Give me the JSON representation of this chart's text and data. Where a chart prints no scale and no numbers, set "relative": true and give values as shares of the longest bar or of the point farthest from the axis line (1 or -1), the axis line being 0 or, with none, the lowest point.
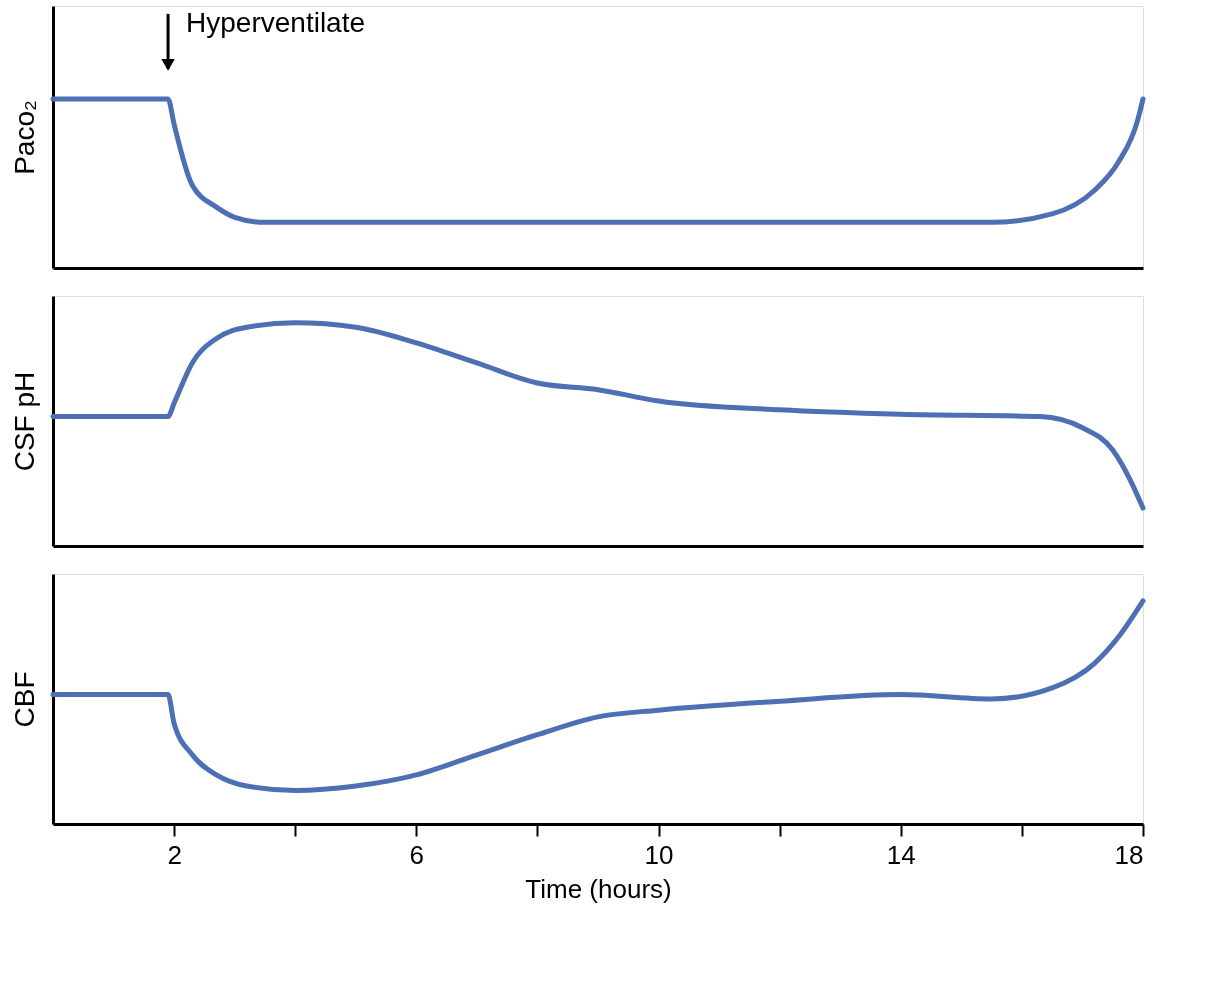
{
  "chart_data": [
    {
      "type": "line",
      "relative": true,
      "ylabel": "Paco₂",
      "xlim": [
        0,
        18
      ],
      "tick_labels": false,
      "grid": false,
      "legend": false,
      "annotations": [
        "Hyperventilate"
      ],
      "series": [
        {
          "color": "#4d6fb3",
          "x": [
            0,
            1.9,
            2.0,
            2.3,
            2.7,
            3.0,
            3.5,
            15.5,
            16.5,
            17.2,
            17.6,
            17.9,
            18
          ],
          "values": [
            1.0,
            1.0,
            0.85,
            0.49,
            0.36,
            0.3,
            0.27,
            0.27,
            0.32,
            0.46,
            0.63,
            0.86,
            1.0
          ]
        }
      ]
    },
    {
      "type": "line",
      "relative": true,
      "ylabel": "CSF pH",
      "xlim": [
        0,
        18
      ],
      "tick_labels": false,
      "grid": false,
      "legend": false,
      "series": [
        {
          "color": "#4d6fb3",
          "x": [
            0,
            1.9,
            2.0,
            2.3,
            2.7,
            3.2,
            4,
            5,
            6,
            7,
            8,
            9,
            10,
            12,
            14,
            16.3,
            17,
            17.5,
            17.8,
            18
          ],
          "values": [
            0.58,
            0.58,
            0.64,
            0.82,
            0.93,
            0.98,
            1.0,
            0.98,
            0.91,
            0.82,
            0.73,
            0.7,
            0.65,
            0.61,
            0.59,
            0.58,
            0.53,
            0.43,
            0.29,
            0.17
          ]
        }
      ]
    },
    {
      "type": "line",
      "relative": true,
      "ylabel": "CBF",
      "xlabel": "Time (hours)",
      "xlim": [
        0,
        18
      ],
      "tick_labels": "x",
      "grid": false,
      "legend": false,
      "xticks": [
        2,
        {
          "value": 4,
          "label": null
        },
        6,
        {
          "value": 8,
          "label": null
        },
        10,
        {
          "value": 12,
          "label": null
        },
        14,
        {
          "value": 16,
          "label": null
        },
        18
      ],
      "series": [
        {
          "color": "#4d6fb3",
          "x": [
            0,
            1.9,
            2.0,
            2.3,
            2.7,
            3.2,
            4,
            5,
            6,
            7,
            8,
            9,
            10,
            12,
            14,
            15.5,
            16.5,
            17.2,
            17.6,
            18
          ],
          "values": [
            0.58,
            0.58,
            0.45,
            0.31,
            0.22,
            0.17,
            0.15,
            0.17,
            0.22,
            0.31,
            0.4,
            0.48,
            0.51,
            0.55,
            0.58,
            0.56,
            0.61,
            0.72,
            0.84,
            1.0
          ]
        }
      ]
    }
  ]
}
